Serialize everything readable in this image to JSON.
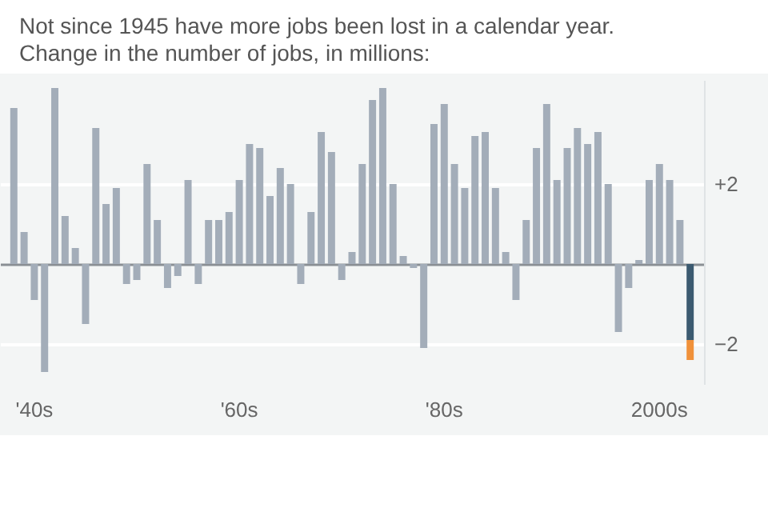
{
  "chart_data": {
    "type": "bar",
    "title": "Not since 1945 have more jobs been lost in a calendar year. Change in the number of jobs, in millions:",
    "categories": [
      null,
      null,
      "'40s",
      null,
      null,
      null,
      null,
      null,
      null,
      null,
      null,
      null,
      null,
      null,
      null,
      null,
      null,
      null,
      null,
      null,
      null,
      null,
      "'60s",
      null,
      null,
      null,
      null,
      null,
      null,
      null,
      null,
      null,
      null,
      null,
      null,
      null,
      null,
      null,
      null,
      null,
      null,
      null,
      "'80s",
      null,
      null,
      null,
      null,
      null,
      null,
      null,
      null,
      null,
      null,
      null,
      null,
      null,
      null,
      null,
      null,
      null,
      null,
      null,
      null,
      "2000s",
      null,
      null,
      null
    ],
    "series": [
      {
        "color": "#a3adb9",
        "values": [
          3.9,
          0.8,
          -0.9,
          -2.7,
          4.4,
          1.2,
          0.4,
          -1.5,
          3.4,
          1.5,
          1.9,
          -0.5,
          -0.4,
          2.5,
          1.1,
          -0.6,
          -0.3,
          2.1,
          -0.5,
          1.1,
          1.1,
          1.3,
          2.1,
          3.0,
          2.9,
          1.7,
          2.4,
          2.0,
          -0.5,
          1.3,
          3.3,
          2.8,
          -0.4,
          0.3,
          2.5,
          4.1,
          4.4,
          2.0,
          0.2,
          -0.1,
          -2.1,
          3.5,
          4.0,
          2.5,
          1.9,
          3.2,
          3.3,
          1.9,
          0.3,
          -0.9,
          1.1,
          2.9,
          4.0,
          2.1,
          2.9,
          3.4,
          3.0,
          3.3,
          2.0,
          -1.7,
          -0.6,
          0.1,
          2.1,
          2.5,
          2.1,
          1.1,
          null
        ]
      },
      {
        "color": "#3b5a70",
        "values": [
          null,
          null,
          null,
          null,
          null,
          null,
          null,
          null,
          null,
          null,
          null,
          null,
          null,
          null,
          null,
          null,
          null,
          null,
          null,
          null,
          null,
          null,
          null,
          null,
          null,
          null,
          null,
          null,
          null,
          null,
          null,
          null,
          null,
          null,
          null,
          null,
          null,
          null,
          null,
          null,
          null,
          null,
          null,
          null,
          null,
          null,
          null,
          null,
          null,
          null,
          null,
          null,
          null,
          null,
          null,
          null,
          null,
          null,
          null,
          null,
          null,
          null,
          null,
          null,
          null,
          null,
          -1.9
        ]
      },
      {
        "color": "#f0913a",
        "values": [
          null,
          null,
          null,
          null,
          null,
          null,
          null,
          null,
          null,
          null,
          null,
          null,
          null,
          null,
          null,
          null,
          null,
          null,
          null,
          null,
          null,
          null,
          null,
          null,
          null,
          null,
          null,
          null,
          null,
          null,
          null,
          null,
          null,
          null,
          null,
          null,
          null,
          null,
          null,
          null,
          null,
          null,
          null,
          null,
          null,
          null,
          null,
          null,
          null,
          null,
          null,
          null,
          null,
          null,
          null,
          null,
          null,
          null,
          null,
          null,
          null,
          null,
          null,
          null,
          null,
          null,
          -0.5
        ]
      }
    ],
    "stacked": true,
    "ylim": [
      -3.0,
      4.6
    ],
    "yticks": [
      {
        "value": -2,
        "label": "−2"
      },
      {
        "value": 0,
        "label": null
      },
      {
        "value": 2,
        "label": "+2"
      }
    ],
    "grid": "y"
  }
}
